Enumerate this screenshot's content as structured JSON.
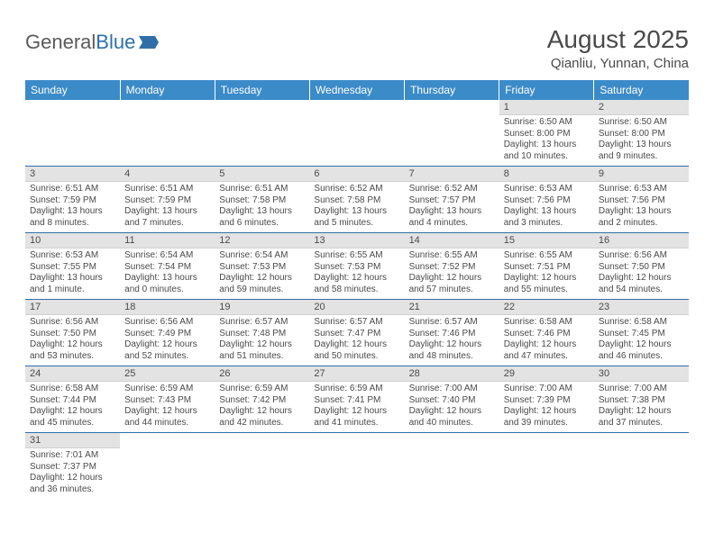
{
  "logo": {
    "general": "General",
    "blue": "Blue"
  },
  "title": "August 2025",
  "location": "Qianliu, Yunnan, China",
  "colors": {
    "header_bg": "#3b8bc9",
    "header_text": "#ffffff",
    "daynum_bg": "#e3e3e3",
    "border": "#2f6fa8",
    "logo_blue": "#2f6fa8",
    "text": "#4a4a4a"
  },
  "day_names": [
    "Sunday",
    "Monday",
    "Tuesday",
    "Wednesday",
    "Thursday",
    "Friday",
    "Saturday"
  ],
  "weeks": [
    [
      null,
      null,
      null,
      null,
      null,
      {
        "n": "1",
        "r": "Sunrise: 6:50 AM",
        "s": "Sunset: 8:00 PM",
        "d": "Daylight: 13 hours and 10 minutes."
      },
      {
        "n": "2",
        "r": "Sunrise: 6:50 AM",
        "s": "Sunset: 8:00 PM",
        "d": "Daylight: 13 hours and 9 minutes."
      }
    ],
    [
      {
        "n": "3",
        "r": "Sunrise: 6:51 AM",
        "s": "Sunset: 7:59 PM",
        "d": "Daylight: 13 hours and 8 minutes."
      },
      {
        "n": "4",
        "r": "Sunrise: 6:51 AM",
        "s": "Sunset: 7:59 PM",
        "d": "Daylight: 13 hours and 7 minutes."
      },
      {
        "n": "5",
        "r": "Sunrise: 6:51 AM",
        "s": "Sunset: 7:58 PM",
        "d": "Daylight: 13 hours and 6 minutes."
      },
      {
        "n": "6",
        "r": "Sunrise: 6:52 AM",
        "s": "Sunset: 7:58 PM",
        "d": "Daylight: 13 hours and 5 minutes."
      },
      {
        "n": "7",
        "r": "Sunrise: 6:52 AM",
        "s": "Sunset: 7:57 PM",
        "d": "Daylight: 13 hours and 4 minutes."
      },
      {
        "n": "8",
        "r": "Sunrise: 6:53 AM",
        "s": "Sunset: 7:56 PM",
        "d": "Daylight: 13 hours and 3 minutes."
      },
      {
        "n": "9",
        "r": "Sunrise: 6:53 AM",
        "s": "Sunset: 7:56 PM",
        "d": "Daylight: 13 hours and 2 minutes."
      }
    ],
    [
      {
        "n": "10",
        "r": "Sunrise: 6:53 AM",
        "s": "Sunset: 7:55 PM",
        "d": "Daylight: 13 hours and 1 minute."
      },
      {
        "n": "11",
        "r": "Sunrise: 6:54 AM",
        "s": "Sunset: 7:54 PM",
        "d": "Daylight: 13 hours and 0 minutes."
      },
      {
        "n": "12",
        "r": "Sunrise: 6:54 AM",
        "s": "Sunset: 7:53 PM",
        "d": "Daylight: 12 hours and 59 minutes."
      },
      {
        "n": "13",
        "r": "Sunrise: 6:55 AM",
        "s": "Sunset: 7:53 PM",
        "d": "Daylight: 12 hours and 58 minutes."
      },
      {
        "n": "14",
        "r": "Sunrise: 6:55 AM",
        "s": "Sunset: 7:52 PM",
        "d": "Daylight: 12 hours and 57 minutes."
      },
      {
        "n": "15",
        "r": "Sunrise: 6:55 AM",
        "s": "Sunset: 7:51 PM",
        "d": "Daylight: 12 hours and 55 minutes."
      },
      {
        "n": "16",
        "r": "Sunrise: 6:56 AM",
        "s": "Sunset: 7:50 PM",
        "d": "Daylight: 12 hours and 54 minutes."
      }
    ],
    [
      {
        "n": "17",
        "r": "Sunrise: 6:56 AM",
        "s": "Sunset: 7:50 PM",
        "d": "Daylight: 12 hours and 53 minutes."
      },
      {
        "n": "18",
        "r": "Sunrise: 6:56 AM",
        "s": "Sunset: 7:49 PM",
        "d": "Daylight: 12 hours and 52 minutes."
      },
      {
        "n": "19",
        "r": "Sunrise: 6:57 AM",
        "s": "Sunset: 7:48 PM",
        "d": "Daylight: 12 hours and 51 minutes."
      },
      {
        "n": "20",
        "r": "Sunrise: 6:57 AM",
        "s": "Sunset: 7:47 PM",
        "d": "Daylight: 12 hours and 50 minutes."
      },
      {
        "n": "21",
        "r": "Sunrise: 6:57 AM",
        "s": "Sunset: 7:46 PM",
        "d": "Daylight: 12 hours and 48 minutes."
      },
      {
        "n": "22",
        "r": "Sunrise: 6:58 AM",
        "s": "Sunset: 7:46 PM",
        "d": "Daylight: 12 hours and 47 minutes."
      },
      {
        "n": "23",
        "r": "Sunrise: 6:58 AM",
        "s": "Sunset: 7:45 PM",
        "d": "Daylight: 12 hours and 46 minutes."
      }
    ],
    [
      {
        "n": "24",
        "r": "Sunrise: 6:58 AM",
        "s": "Sunset: 7:44 PM",
        "d": "Daylight: 12 hours and 45 minutes."
      },
      {
        "n": "25",
        "r": "Sunrise: 6:59 AM",
        "s": "Sunset: 7:43 PM",
        "d": "Daylight: 12 hours and 44 minutes."
      },
      {
        "n": "26",
        "r": "Sunrise: 6:59 AM",
        "s": "Sunset: 7:42 PM",
        "d": "Daylight: 12 hours and 42 minutes."
      },
      {
        "n": "27",
        "r": "Sunrise: 6:59 AM",
        "s": "Sunset: 7:41 PM",
        "d": "Daylight: 12 hours and 41 minutes."
      },
      {
        "n": "28",
        "r": "Sunrise: 7:00 AM",
        "s": "Sunset: 7:40 PM",
        "d": "Daylight: 12 hours and 40 minutes."
      },
      {
        "n": "29",
        "r": "Sunrise: 7:00 AM",
        "s": "Sunset: 7:39 PM",
        "d": "Daylight: 12 hours and 39 minutes."
      },
      {
        "n": "30",
        "r": "Sunrise: 7:00 AM",
        "s": "Sunset: 7:38 PM",
        "d": "Daylight: 12 hours and 37 minutes."
      }
    ],
    [
      {
        "n": "31",
        "r": "Sunrise: 7:01 AM",
        "s": "Sunset: 7:37 PM",
        "d": "Daylight: 12 hours and 36 minutes."
      },
      null,
      null,
      null,
      null,
      null,
      null
    ]
  ]
}
